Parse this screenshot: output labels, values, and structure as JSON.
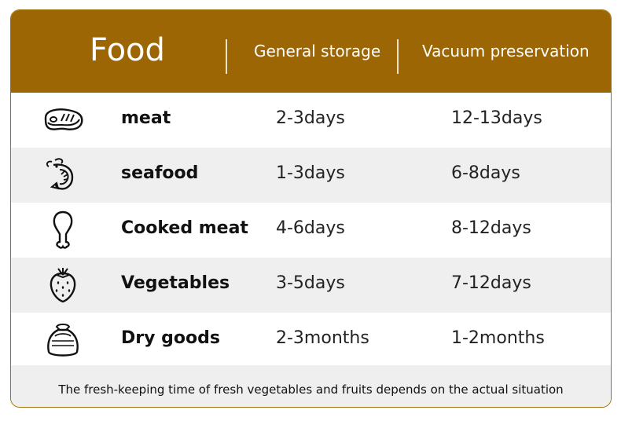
{
  "header": {
    "food_label": "Food",
    "general_label": "General storage",
    "vacuum_label": "Vacuum preservation"
  },
  "rows": [
    {
      "name": "meat",
      "general": "2-3days",
      "vacuum": "12-13days",
      "icon": "steak-icon"
    },
    {
      "name": "seafood",
      "general": "1-3days",
      "vacuum": "6-8days",
      "icon": "shrimp-icon"
    },
    {
      "name": "Cooked meat",
      "general": "4-6days",
      "vacuum": "8-12days",
      "icon": "drumstick-icon"
    },
    {
      "name": "Vegetables",
      "general": "3-5days",
      "vacuum": "7-12days",
      "icon": "strawberry-icon"
    },
    {
      "name": "Dry goods",
      "general": "2-3months",
      "vacuum": "1-2months",
      "icon": "grain-sack-icon"
    }
  ],
  "footer": {
    "note": "The fresh-keeping time of fresh vegetables and fruits depends on the actual situation"
  },
  "colors": {
    "header_bg": "#9c6604",
    "alt_row_bg": "#efefef",
    "border": "#a0710c"
  }
}
